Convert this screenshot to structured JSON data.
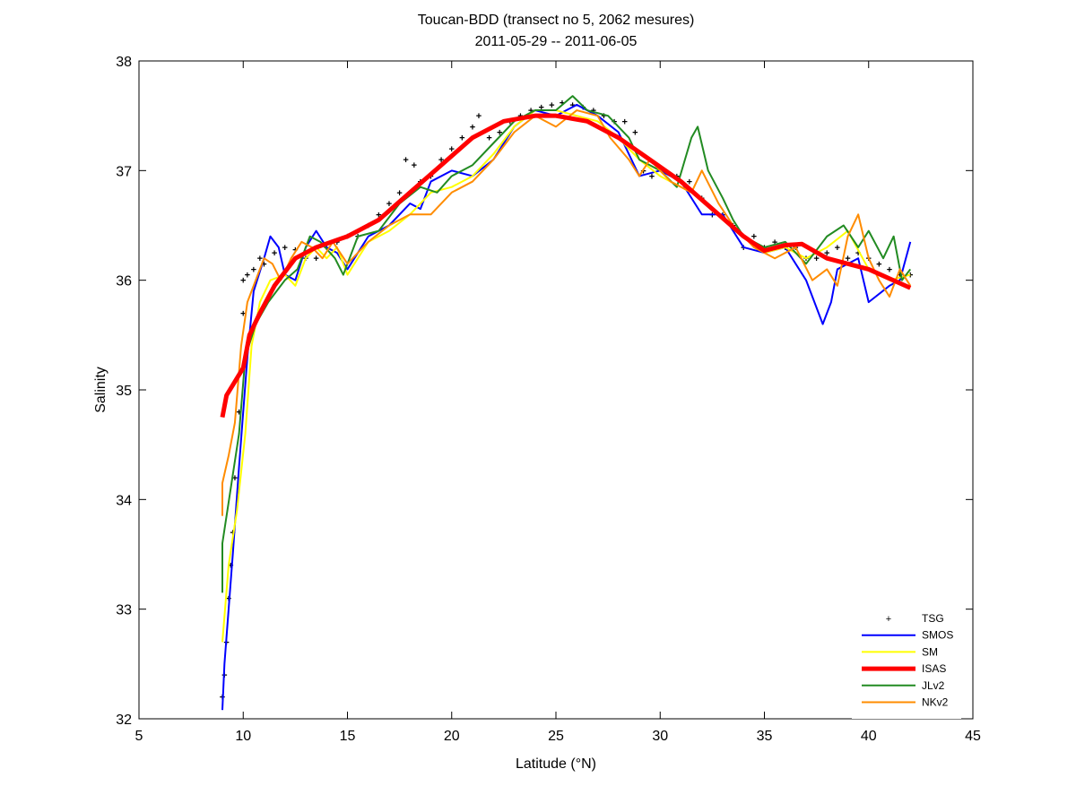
{
  "chart_data": {
    "type": "line",
    "title": "Toucan-BDD (transect no 5, 2062 mesures)",
    "subtitle": "2011-05-29 -- 2011-06-05",
    "xlabel": "Latitude (°N)",
    "ylabel": "Salinity",
    "xlim": [
      5,
      45
    ],
    "ylim": [
      32,
      38
    ],
    "xticks": [
      5,
      10,
      15,
      20,
      25,
      30,
      35,
      40,
      45
    ],
    "yticks": [
      32,
      33,
      34,
      35,
      36,
      37,
      38
    ],
    "grid": false,
    "legend_position": "bottom-right",
    "series": [
      {
        "name": "TSG",
        "color": "#000000",
        "marker": "+",
        "points": [
          [
            9,
            32.2
          ],
          [
            9.1,
            32.4
          ],
          [
            9.2,
            32.7
          ],
          [
            9.3,
            33.1
          ],
          [
            9.4,
            33.4
          ],
          [
            9.5,
            33.7
          ],
          [
            9.6,
            34.2
          ],
          [
            9.8,
            34.8
          ],
          [
            10,
            35.7
          ],
          [
            10,
            36.0
          ],
          [
            10.2,
            36.05
          ],
          [
            10.5,
            36.1
          ],
          [
            10.8,
            36.2
          ],
          [
            11,
            36.15
          ],
          [
            11.5,
            36.25
          ],
          [
            12,
            36.3
          ],
          [
            12.5,
            36.28
          ],
          [
            13,
            36.2
          ],
          [
            13.5,
            36.2
          ],
          [
            14,
            36.3
          ],
          [
            14.5,
            36.35
          ],
          [
            15,
            36.4
          ],
          [
            15.5,
            36.4
          ],
          [
            16,
            36.5
          ],
          [
            16.5,
            36.6
          ],
          [
            17,
            36.7
          ],
          [
            17.5,
            36.8
          ],
          [
            17.8,
            37.1
          ],
          [
            18.2,
            37.05
          ],
          [
            18.5,
            36.9
          ],
          [
            19,
            36.95
          ],
          [
            19.5,
            37.1
          ],
          [
            20,
            37.2
          ],
          [
            20.5,
            37.3
          ],
          [
            21,
            37.4
          ],
          [
            21.3,
            37.5
          ],
          [
            21.8,
            37.3
          ],
          [
            22.3,
            37.35
          ],
          [
            22.8,
            37.45
          ],
          [
            23.3,
            37.5
          ],
          [
            23.8,
            37.55
          ],
          [
            24.3,
            37.58
          ],
          [
            24.8,
            37.6
          ],
          [
            25.3,
            37.62
          ],
          [
            25.8,
            37.6
          ],
          [
            26.3,
            37.58
          ],
          [
            26.8,
            37.55
          ],
          [
            27.3,
            37.5
          ],
          [
            27.8,
            37.45
          ],
          [
            28.3,
            37.45
          ],
          [
            28.8,
            37.35
          ],
          [
            29.2,
            37.0
          ],
          [
            29.6,
            36.95
          ],
          [
            30.2,
            37.0
          ],
          [
            30.8,
            36.95
          ],
          [
            31.4,
            36.9
          ],
          [
            32,
            36.75
          ],
          [
            32.5,
            36.6
          ],
          [
            33,
            36.6
          ],
          [
            33.5,
            36.5
          ],
          [
            34,
            36.3
          ],
          [
            34.5,
            36.4
          ],
          [
            35,
            36.3
          ],
          [
            35.5,
            36.35
          ],
          [
            36,
            36.3
          ],
          [
            36.5,
            36.3
          ],
          [
            37,
            36.2
          ],
          [
            37.5,
            36.2
          ],
          [
            38,
            36.25
          ],
          [
            38.5,
            36.3
          ],
          [
            39,
            36.2
          ],
          [
            39.5,
            36.25
          ],
          [
            40,
            36.2
          ],
          [
            40.5,
            36.15
          ],
          [
            41,
            36.1
          ],
          [
            41.5,
            36.05
          ],
          [
            42,
            36.05
          ]
        ]
      },
      {
        "name": "SMOS",
        "color": "#0000ff",
        "width": 2,
        "points": [
          [
            9,
            32.08
          ],
          [
            9.1,
            32.5
          ],
          [
            9.5,
            33.5
          ],
          [
            9.8,
            34.3
          ],
          [
            10.2,
            35.3
          ],
          [
            10.5,
            35.9
          ],
          [
            11,
            36.2
          ],
          [
            11.3,
            36.4
          ],
          [
            11.7,
            36.3
          ],
          [
            12,
            36.05
          ],
          [
            12.5,
            36.0
          ],
          [
            13,
            36.3
          ],
          [
            13.5,
            36.45
          ],
          [
            14,
            36.3
          ],
          [
            14.5,
            36.25
          ],
          [
            15,
            36.1
          ],
          [
            16,
            36.4
          ],
          [
            17,
            36.5
          ],
          [
            18,
            36.7
          ],
          [
            18.5,
            36.65
          ],
          [
            19,
            36.9
          ],
          [
            20,
            37.0
          ],
          [
            21,
            36.95
          ],
          [
            22,
            37.1
          ],
          [
            23,
            37.4
          ],
          [
            24,
            37.55
          ],
          [
            25,
            37.5
          ],
          [
            26,
            37.6
          ],
          [
            27,
            37.5
          ],
          [
            28,
            37.35
          ],
          [
            29,
            36.95
          ],
          [
            30,
            37.0
          ],
          [
            31,
            36.9
          ],
          [
            32,
            36.6
          ],
          [
            33,
            36.6
          ],
          [
            34,
            36.3
          ],
          [
            35,
            36.25
          ],
          [
            36,
            36.3
          ],
          [
            37,
            36.0
          ],
          [
            37.8,
            35.6
          ],
          [
            38.2,
            35.8
          ],
          [
            38.5,
            36.1
          ],
          [
            39.5,
            36.2
          ],
          [
            40,
            35.8
          ],
          [
            41,
            35.95
          ],
          [
            41.5,
            36.0
          ],
          [
            42,
            36.35
          ]
        ]
      },
      {
        "name": "SM",
        "color": "#ffff00",
        "width": 2,
        "points": [
          [
            9,
            32.7
          ],
          [
            9.3,
            33.4
          ],
          [
            9.7,
            33.9
          ],
          [
            10.1,
            34.6
          ],
          [
            10.4,
            35.4
          ],
          [
            10.8,
            35.8
          ],
          [
            11.3,
            36.0
          ],
          [
            12,
            36.05
          ],
          [
            12.5,
            35.95
          ],
          [
            13,
            36.2
          ],
          [
            13.5,
            36.3
          ],
          [
            14,
            36.2
          ],
          [
            14.5,
            36.3
          ],
          [
            15,
            36.05
          ],
          [
            16,
            36.35
          ],
          [
            17,
            36.45
          ],
          [
            18,
            36.6
          ],
          [
            19,
            36.8
          ],
          [
            20,
            36.85
          ],
          [
            21,
            36.95
          ],
          [
            22,
            37.15
          ],
          [
            23,
            37.4
          ],
          [
            24,
            37.55
          ],
          [
            25,
            37.55
          ],
          [
            26,
            37.5
          ],
          [
            27,
            37.45
          ],
          [
            28,
            37.3
          ],
          [
            29,
            37.1
          ],
          [
            30,
            36.95
          ],
          [
            31,
            36.85
          ],
          [
            32,
            36.75
          ],
          [
            33,
            36.55
          ],
          [
            34,
            36.4
          ],
          [
            35,
            36.25
          ],
          [
            36,
            36.3
          ],
          [
            37,
            36.2
          ],
          [
            38,
            36.3
          ],
          [
            39,
            36.45
          ],
          [
            40,
            36.1
          ],
          [
            41,
            36.0
          ],
          [
            42,
            36.05
          ]
        ]
      },
      {
        "name": "ISAS",
        "color": "#ff0000",
        "width": 5,
        "points": [
          [
            9,
            34.75
          ],
          [
            9.2,
            34.95
          ],
          [
            10,
            35.2
          ],
          [
            10.3,
            35.5
          ],
          [
            10.8,
            35.7
          ],
          [
            11.5,
            35.95
          ],
          [
            12.5,
            36.2
          ],
          [
            13.5,
            36.3
          ],
          [
            15,
            36.4
          ],
          [
            16.5,
            36.55
          ],
          [
            18,
            36.8
          ],
          [
            19.5,
            37.05
          ],
          [
            21,
            37.3
          ],
          [
            22.5,
            37.45
          ],
          [
            24,
            37.5
          ],
          [
            25,
            37.5
          ],
          [
            26.5,
            37.45
          ],
          [
            28,
            37.3
          ],
          [
            29.5,
            37.1
          ],
          [
            31,
            36.9
          ],
          [
            32.5,
            36.65
          ],
          [
            34,
            36.4
          ],
          [
            35,
            36.27
          ],
          [
            36,
            36.32
          ],
          [
            36.8,
            36.33
          ],
          [
            38,
            36.2
          ],
          [
            40,
            36.1
          ],
          [
            42,
            35.93
          ]
        ]
      },
      {
        "name": "JLv2",
        "color": "#228b22",
        "width": 2,
        "points": [
          [
            9,
            33.15
          ],
          [
            9,
            33.6
          ],
          [
            9.4,
            34.1
          ],
          [
            9.8,
            34.6
          ],
          [
            10.1,
            35.3
          ],
          [
            10.6,
            35.6
          ],
          [
            11.2,
            35.8
          ],
          [
            12,
            36.0
          ],
          [
            12.6,
            36.1
          ],
          [
            13.2,
            36.4
          ],
          [
            13.7,
            36.35
          ],
          [
            14.4,
            36.2
          ],
          [
            14.8,
            36.05
          ],
          [
            15.5,
            36.4
          ],
          [
            16.5,
            36.45
          ],
          [
            17.5,
            36.7
          ],
          [
            18.5,
            36.85
          ],
          [
            19.3,
            36.8
          ],
          [
            20,
            36.95
          ],
          [
            21,
            37.05
          ],
          [
            22,
            37.25
          ],
          [
            23,
            37.45
          ],
          [
            24,
            37.55
          ],
          [
            25,
            37.55
          ],
          [
            25.8,
            37.68
          ],
          [
            26.5,
            37.55
          ],
          [
            27.5,
            37.5
          ],
          [
            28.5,
            37.3
          ],
          [
            29,
            37.1
          ],
          [
            30,
            37.0
          ],
          [
            30.8,
            36.85
          ],
          [
            31.5,
            37.3
          ],
          [
            31.8,
            37.4
          ],
          [
            32.3,
            37.0
          ],
          [
            33,
            36.75
          ],
          [
            33.5,
            36.55
          ],
          [
            34,
            36.4
          ],
          [
            35,
            36.3
          ],
          [
            36,
            36.35
          ],
          [
            37,
            36.15
          ],
          [
            38,
            36.4
          ],
          [
            38.8,
            36.5
          ],
          [
            39.5,
            36.3
          ],
          [
            40,
            36.45
          ],
          [
            40.7,
            36.2
          ],
          [
            41.2,
            36.4
          ],
          [
            41.6,
            36.0
          ],
          [
            42,
            36.1
          ]
        ]
      },
      {
        "name": "NKv2",
        "color": "#ff8c00",
        "width": 2,
        "points": [
          [
            9,
            33.85
          ],
          [
            9,
            34.15
          ],
          [
            9.3,
            34.4
          ],
          [
            9.6,
            34.7
          ],
          [
            9.9,
            35.4
          ],
          [
            10.2,
            35.8
          ],
          [
            10.6,
            36.0
          ],
          [
            11,
            36.2
          ],
          [
            11.4,
            36.15
          ],
          [
            11.8,
            36.0
          ],
          [
            12.3,
            36.2
          ],
          [
            12.8,
            36.35
          ],
          [
            13.3,
            36.3
          ],
          [
            13.8,
            36.2
          ],
          [
            14.3,
            36.35
          ],
          [
            15,
            36.15
          ],
          [
            16,
            36.35
          ],
          [
            17,
            36.5
          ],
          [
            18,
            36.6
          ],
          [
            19,
            36.6
          ],
          [
            20,
            36.8
          ],
          [
            21,
            36.9
          ],
          [
            22,
            37.1
          ],
          [
            23,
            37.35
          ],
          [
            24,
            37.5
          ],
          [
            25,
            37.4
          ],
          [
            26,
            37.55
          ],
          [
            27,
            37.5
          ],
          [
            27.6,
            37.3
          ],
          [
            28.5,
            37.1
          ],
          [
            29,
            36.95
          ],
          [
            29.5,
            37.1
          ],
          [
            30.5,
            36.9
          ],
          [
            31.5,
            36.8
          ],
          [
            32,
            37.0
          ],
          [
            32.8,
            36.7
          ],
          [
            33.5,
            36.5
          ],
          [
            34.5,
            36.3
          ],
          [
            35.5,
            36.2
          ],
          [
            36.5,
            36.3
          ],
          [
            37.3,
            36.0
          ],
          [
            38,
            36.1
          ],
          [
            38.5,
            35.95
          ],
          [
            39,
            36.4
          ],
          [
            39.5,
            36.6
          ],
          [
            40,
            36.2
          ],
          [
            40.5,
            36.0
          ],
          [
            41,
            35.85
          ],
          [
            41.5,
            36.1
          ],
          [
            42,
            35.95
          ]
        ]
      }
    ]
  }
}
